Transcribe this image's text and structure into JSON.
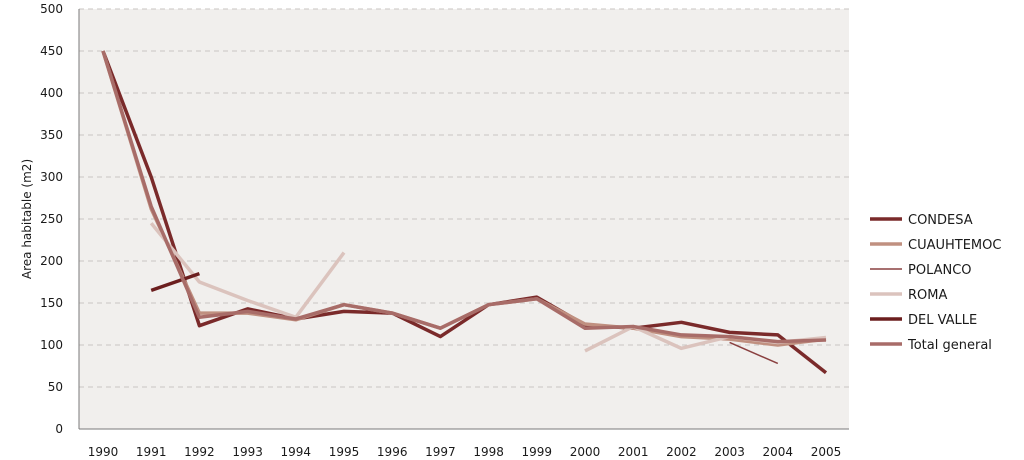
{
  "chart_data": {
    "type": "line",
    "title": "",
    "xlabel": "",
    "ylabel": "Area habitable    (m2)",
    "ylim": [
      0,
      500
    ],
    "yticks": [
      0,
      50,
      100,
      150,
      200,
      250,
      300,
      350,
      400,
      450,
      500
    ],
    "categories": [
      "1990",
      "1991",
      "1992",
      "1993",
      "1994",
      "1995",
      "1996",
      "1997",
      "1998",
      "1999",
      "2000",
      "2001",
      "2002",
      "2003",
      "2004",
      "2005"
    ],
    "grid": "horizontal dashed",
    "legend_position": "right",
    "background": "#f1efed",
    "series": [
      {
        "name": "CONDESA",
        "color": "#7a2a2a",
        "width": 3.5,
        "values": [
          450,
          300,
          123,
          143,
          131,
          140,
          138,
          110,
          148,
          157,
          124,
          120,
          127,
          115,
          112,
          67
        ]
      },
      {
        "name": "CUAUHTEMOC",
        "color": "#c09080",
        "width": 3.5,
        "values": [
          450,
          262,
          138,
          138,
          130,
          148,
          138,
          120,
          148,
          155,
          125,
          120,
          110,
          107,
          100,
          107
        ]
      },
      {
        "name": "POLANCO",
        "color": "#8a4040",
        "width": 1.5,
        "values": [
          null,
          null,
          null,
          null,
          null,
          null,
          null,
          null,
          null,
          null,
          null,
          null,
          null,
          103,
          78,
          null
        ]
      },
      {
        "name": "ROMA",
        "color": "#dbc3bd",
        "width": 3.5,
        "values": [
          null,
          245,
          175,
          153,
          133,
          210,
          null,
          null,
          null,
          null,
          93,
          122,
          96,
          110,
          103,
          109
        ]
      },
      {
        "name": "DEL VALLE",
        "color": "#6b1e1e",
        "width": 3.5,
        "values": [
          null,
          165,
          185,
          null,
          null,
          null,
          null,
          null,
          null,
          null,
          null,
          null,
          null,
          null,
          null,
          null
        ]
      },
      {
        "name": "Total general",
        "color": "#a86c68",
        "width": 3.5,
        "values": [
          450,
          265,
          133,
          140,
          131,
          148,
          138,
          120,
          148,
          155,
          120,
          122,
          112,
          110,
          104,
          106
        ]
      }
    ]
  }
}
